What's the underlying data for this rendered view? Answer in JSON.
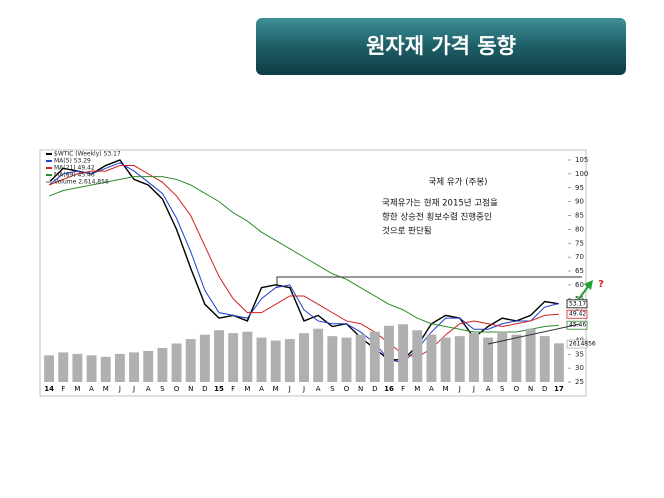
{
  "slide_title": "원자재 가격 동향",
  "chart_data": {
    "type": "line",
    "categories": [
      "14",
      "F",
      "M",
      "A",
      "M",
      "J",
      "J",
      "A",
      "S",
      "O",
      "N",
      "D",
      "15",
      "F",
      "M",
      "A",
      "M",
      "J",
      "J",
      "A",
      "S",
      "O",
      "N",
      "D",
      "16",
      "F",
      "M",
      "A",
      "M",
      "J",
      "J",
      "A",
      "S",
      "O",
      "N",
      "D",
      "17"
    ],
    "series": [
      {
        "name": "$WTIC (Weekly) 53.17",
        "color": "#000000",
        "values": [
          97,
          102,
          101,
          100,
          103,
          105,
          98,
          96,
          91,
          80,
          66,
          53,
          48,
          49,
          47,
          59,
          60,
          59,
          47,
          49,
          45,
          46,
          41,
          37,
          33,
          33,
          38,
          46,
          49,
          48,
          41,
          45,
          48,
          47,
          49,
          54,
          53.17
        ]
      },
      {
        "name": "MA(5) 53.29",
        "color": "#1f3fd0",
        "values": [
          96,
          100,
          101,
          100,
          102,
          104,
          101,
          97,
          93,
          84,
          72,
          58,
          50,
          49,
          48,
          55,
          59,
          60,
          51,
          47,
          46,
          46,
          43,
          39,
          33,
          32,
          37,
          43,
          48,
          48,
          44,
          44,
          46,
          47,
          47,
          52,
          53.29
        ]
      },
      {
        "name": "MA(21) 49.42",
        "color": "#d02020",
        "values": [
          96,
          98,
          100,
          101,
          101,
          103,
          103,
          100,
          97,
          92,
          85,
          74,
          63,
          55,
          50,
          50,
          53,
          56,
          56,
          53,
          50,
          47,
          46,
          43,
          39,
          35,
          34,
          37,
          42,
          46,
          47,
          46,
          45,
          46,
          47,
          49,
          49.42
        ]
      },
      {
        "name": "MA(89) 45.46",
        "color": "#2e8b2e",
        "values": [
          92,
          94,
          95,
          96,
          97,
          98,
          99,
          99,
          99,
          98,
          96,
          93,
          90,
          86,
          83,
          79,
          76,
          73,
          70,
          67,
          64,
          62,
          59,
          56,
          53,
          51,
          48,
          46,
          45,
          44,
          43,
          43,
          43,
          43,
          44,
          45,
          45.46
        ]
      },
      {
        "name": "Volume 2,614,856",
        "color": "#b0b0b0",
        "axis": "y2",
        "values": [
          1800000,
          2000000,
          1900000,
          1800000,
          1700000,
          1900000,
          2000000,
          2100000,
          2300000,
          2600000,
          2900000,
          3200000,
          3500000,
          3300000,
          3400000,
          3000000,
          2800000,
          2900000,
          3300000,
          3600000,
          3100000,
          3000000,
          3200000,
          3400000,
          3800000,
          3900000,
          3500000,
          3200000,
          3000000,
          3100000,
          3300000,
          3000000,
          3400000,
          3200000,
          3600000,
          3100000,
          2614856
        ]
      }
    ],
    "ylim": [
      25,
      105
    ],
    "yticks": [
      25,
      30,
      35,
      40,
      45,
      50,
      55,
      60,
      65,
      70,
      75,
      80,
      85,
      90,
      95,
      100,
      105
    ],
    "y2lim": [
      0,
      15000000
    ],
    "annotations": [
      "국제 유가 (주봉)",
      "국제유가는 현재 2015년 고점을",
      "향한 상승전 횡보수렴 진행중인",
      "것으로 판단됨",
      "?"
    ]
  }
}
